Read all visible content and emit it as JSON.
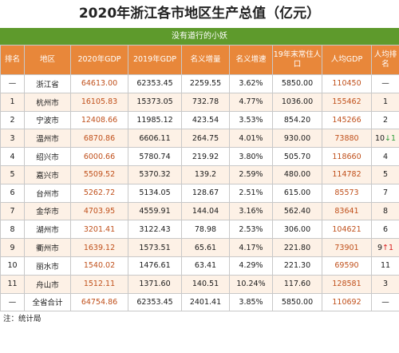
{
  "title": "2020年浙江各市地区生产总值（亿元）",
  "subtitle": "没有道行的小妖",
  "colors": {
    "header_bg": "#e8873a",
    "subtitle_bg": "#5e9a2c",
    "gdp_text": "#c0501b",
    "rank_up": "#d92020",
    "rank_down": "#2e9e3a"
  },
  "columns": [
    "排名",
    "地区",
    "2020年GDP",
    "2019年GDP",
    "名义增量",
    "名义增速",
    "19年末常住人口",
    "人均GDP",
    "人均排名"
  ],
  "rows": [
    {
      "rank": "—",
      "region": "浙江省",
      "gdp2020": "64613.00",
      "gdp2019": "62353.45",
      "increase": "2259.55",
      "growth": "3.62%",
      "population": "5850.00",
      "per_capita": "110450",
      "pc_rank": "—",
      "pc_change": "",
      "pc_dir": ""
    },
    {
      "rank": "1",
      "region": "杭州市",
      "gdp2020": "16105.83",
      "gdp2019": "15373.05",
      "increase": "732.78",
      "growth": "4.77%",
      "population": "1036.00",
      "per_capita": "155462",
      "pc_rank": "1",
      "pc_change": "",
      "pc_dir": ""
    },
    {
      "rank": "2",
      "region": "宁波市",
      "gdp2020": "12408.66",
      "gdp2019": "11985.12",
      "increase": "423.54",
      "growth": "3.53%",
      "population": "854.20",
      "per_capita": "145266",
      "pc_rank": "2",
      "pc_change": "",
      "pc_dir": ""
    },
    {
      "rank": "3",
      "region": "温州市",
      "gdp2020": "6870.86",
      "gdp2019": "6606.11",
      "increase": "264.75",
      "growth": "4.01%",
      "population": "930.00",
      "per_capita": "73880",
      "pc_rank": "10",
      "pc_change": "↓1",
      "pc_dir": "down"
    },
    {
      "rank": "4",
      "region": "绍兴市",
      "gdp2020": "6000.66",
      "gdp2019": "5780.74",
      "increase": "219.92",
      "growth": "3.80%",
      "population": "505.70",
      "per_capita": "118660",
      "pc_rank": "4",
      "pc_change": "",
      "pc_dir": ""
    },
    {
      "rank": "5",
      "region": "嘉兴市",
      "gdp2020": "5509.52",
      "gdp2019": "5370.32",
      "increase": "139.2",
      "growth": "2.59%",
      "population": "480.00",
      "per_capita": "114782",
      "pc_rank": "5",
      "pc_change": "",
      "pc_dir": ""
    },
    {
      "rank": "6",
      "region": "台州市",
      "gdp2020": "5262.72",
      "gdp2019": "5134.05",
      "increase": "128.67",
      "growth": "2.51%",
      "population": "615.00",
      "per_capita": "85573",
      "pc_rank": "7",
      "pc_change": "",
      "pc_dir": ""
    },
    {
      "rank": "7",
      "region": "金华市",
      "gdp2020": "4703.95",
      "gdp2019": "4559.91",
      "increase": "144.04",
      "growth": "3.16%",
      "population": "562.40",
      "per_capita": "83641",
      "pc_rank": "8",
      "pc_change": "",
      "pc_dir": ""
    },
    {
      "rank": "8",
      "region": "湖州市",
      "gdp2020": "3201.41",
      "gdp2019": "3122.43",
      "increase": "78.98",
      "growth": "2.53%",
      "population": "306.00",
      "per_capita": "104621",
      "pc_rank": "6",
      "pc_change": "",
      "pc_dir": ""
    },
    {
      "rank": "9",
      "region": "衢州市",
      "gdp2020": "1639.12",
      "gdp2019": "1573.51",
      "increase": "65.61",
      "growth": "4.17%",
      "population": "221.80",
      "per_capita": "73901",
      "pc_rank": "9",
      "pc_change": "↑1",
      "pc_dir": "up"
    },
    {
      "rank": "10",
      "region": "丽水市",
      "gdp2020": "1540.02",
      "gdp2019": "1476.61",
      "increase": "63.41",
      "growth": "4.29%",
      "population": "221.30",
      "per_capita": "69590",
      "pc_rank": "11",
      "pc_change": "",
      "pc_dir": ""
    },
    {
      "rank": "11",
      "region": "舟山市",
      "gdp2020": "1512.11",
      "gdp2019": "1371.60",
      "increase": "140.51",
      "growth": "10.24%",
      "population": "117.60",
      "per_capita": "128581",
      "pc_rank": "3",
      "pc_change": "",
      "pc_dir": ""
    },
    {
      "rank": "—",
      "region": "全省合计",
      "gdp2020": "64754.86",
      "gdp2019": "62353.45",
      "increase": "2401.41",
      "growth": "3.85%",
      "population": "5850.00",
      "per_capita": "110692",
      "pc_rank": "—",
      "pc_change": "",
      "pc_dir": ""
    }
  ],
  "footer": "注：统计局"
}
